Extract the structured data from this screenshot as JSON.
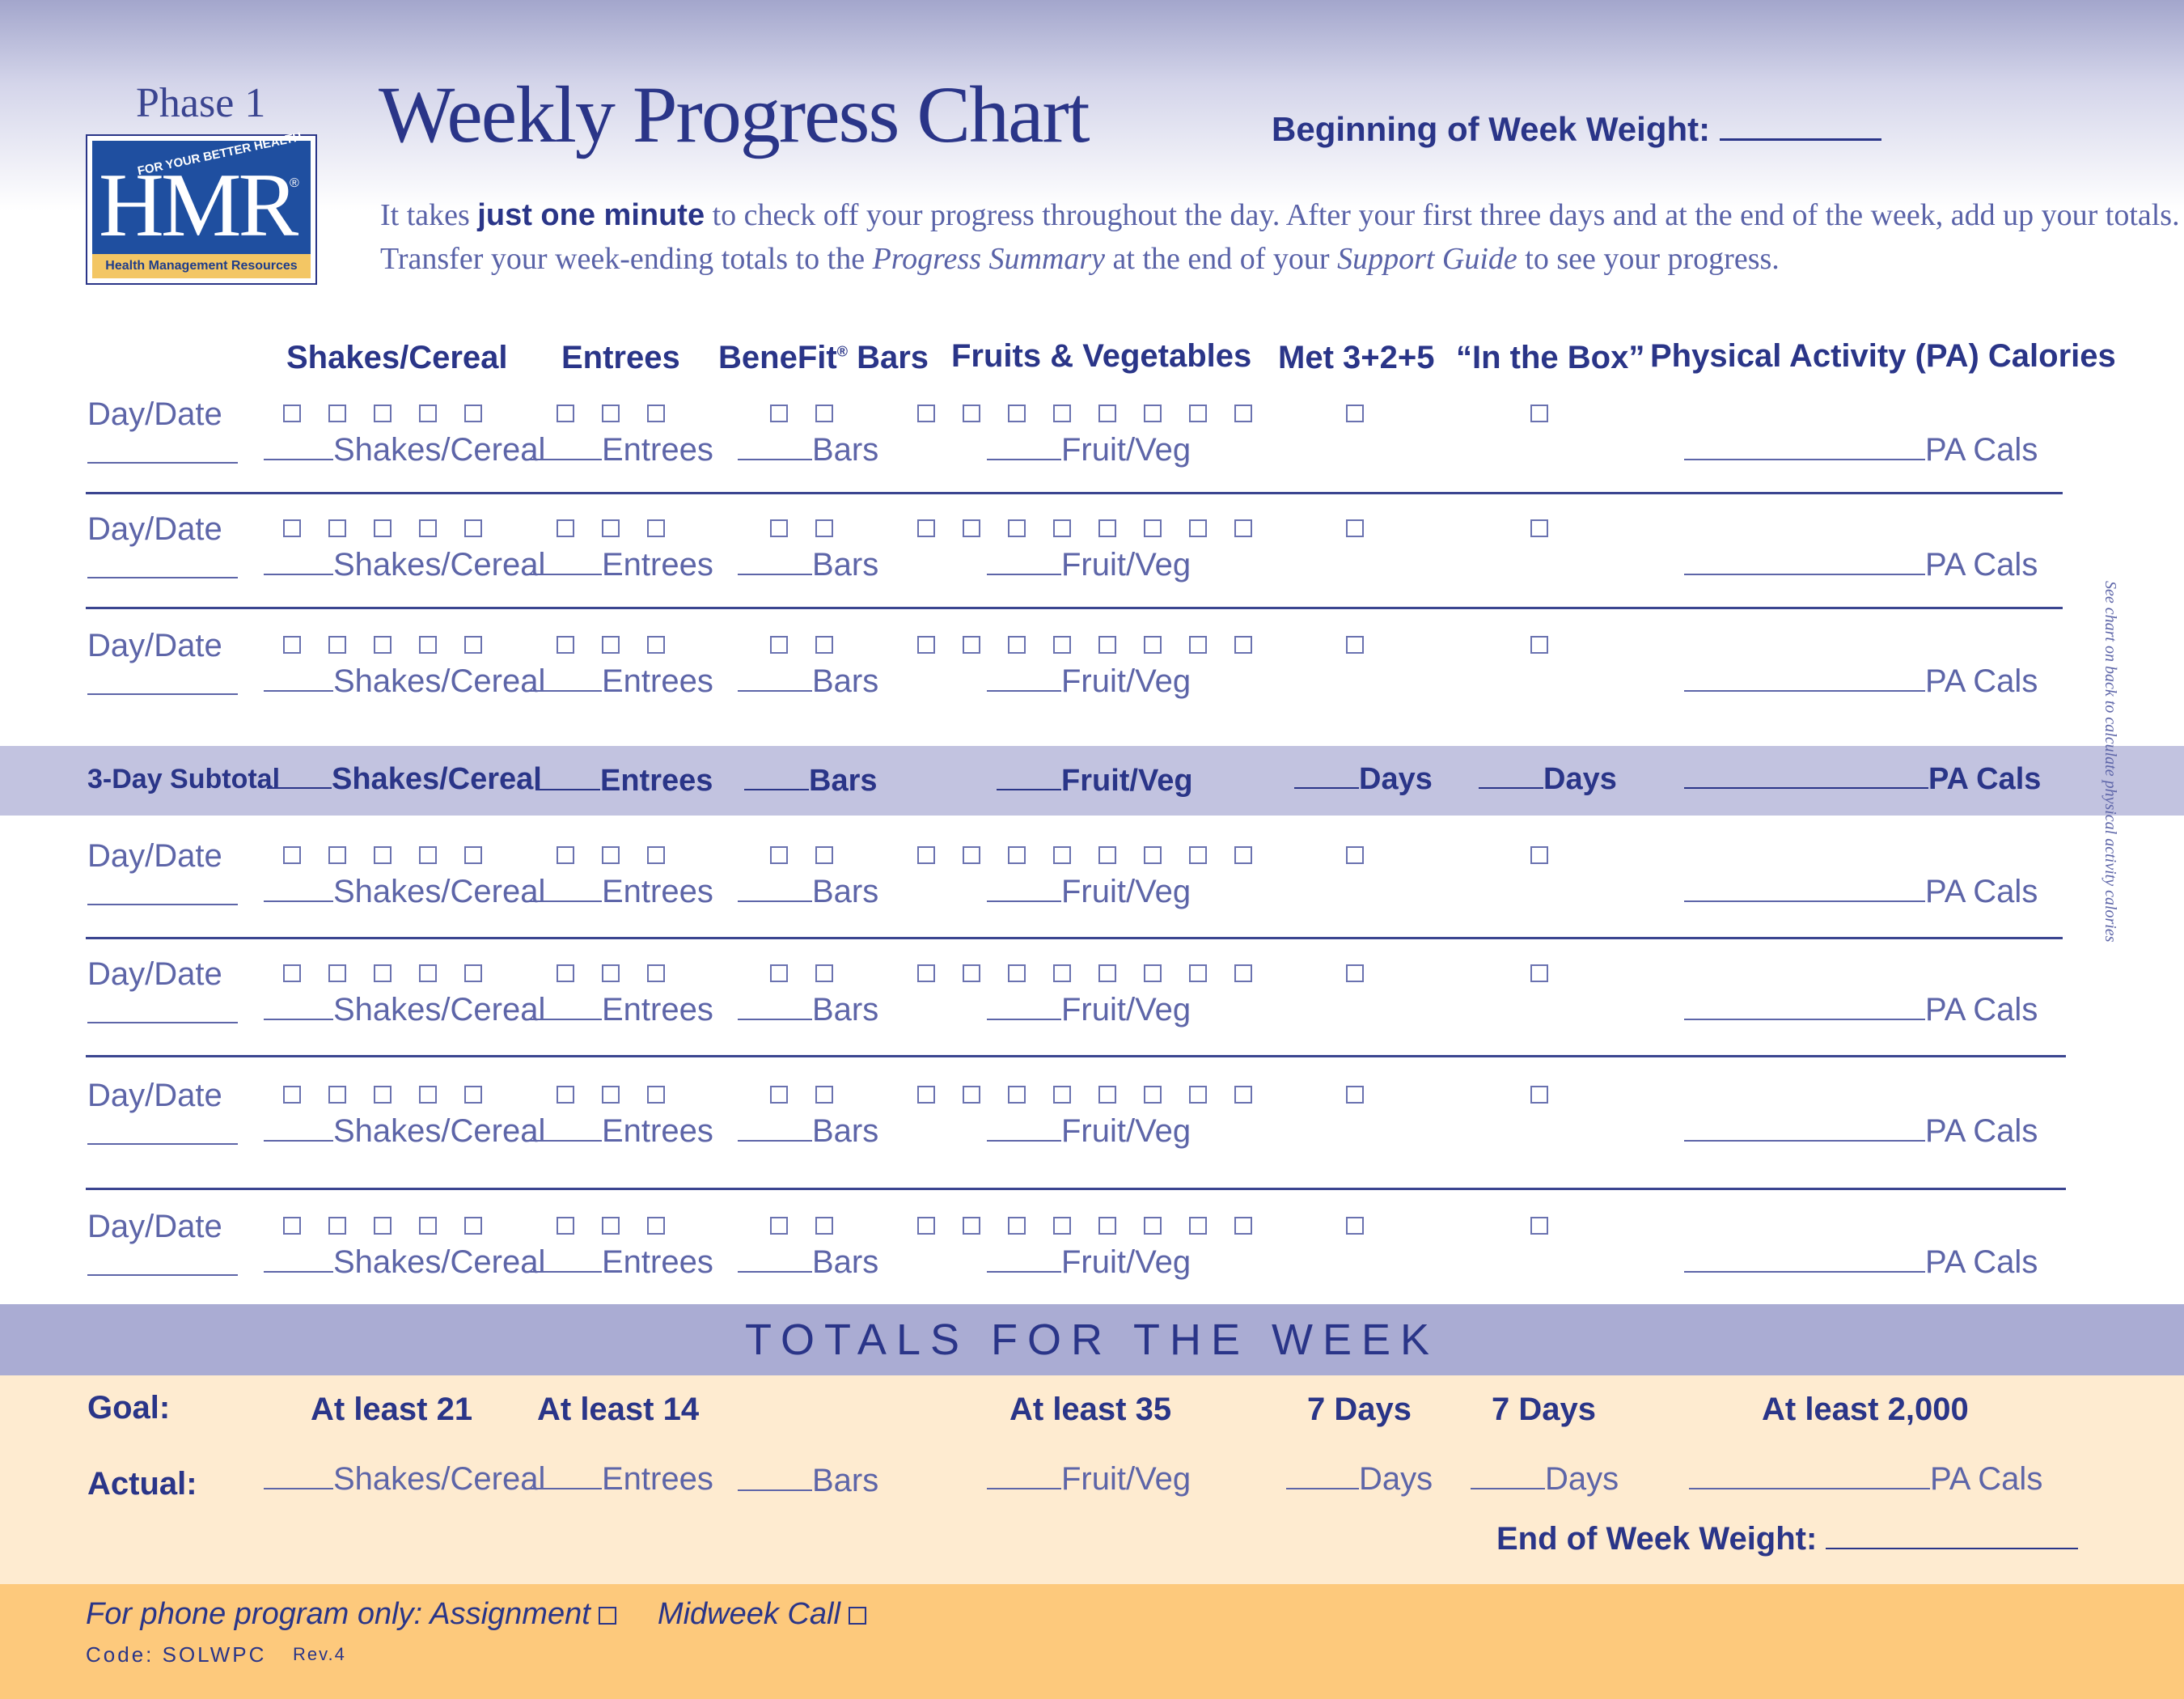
{
  "header": {
    "phase": "Phase 1",
    "title": "Weekly Progress Chart",
    "weight_label": "Beginning of Week Weight:",
    "intro_line1_a": "It takes ",
    "intro_line1_bold": "just one minute",
    "intro_line1_b": " to check off your progress throughout the day. After your first three days and at the end of the week, add up your totals.",
    "intro_line2_a": "Transfer your week-ending totals to the ",
    "intro_line2_italic1": "Progress Summary",
    "intro_line2_b": " at the end of your ",
    "intro_line2_italic2": "Support Guide",
    "intro_line2_c": " to see your progress."
  },
  "logo": {
    "tagline": "FOR YOUR BETTER HEALTH",
    "mark": "HMR",
    "registered": "®",
    "name": "Health Management Resources"
  },
  "columns": {
    "shakes": "Shakes/Cereal",
    "entrees": "Entrees",
    "bars_a": "BeneFit",
    "bars_reg": "®",
    "bars_b": " Bars",
    "fruits": "Fruits & Vegetables",
    "met": "Met 3+2+5",
    "box": "“In the Box”",
    "pa": "Physical Activity (PA) Calories"
  },
  "row_labels": {
    "day_date": "Day/Date",
    "shakes": "Shakes/Cereal",
    "entrees": "Entrees",
    "bars": "Bars",
    "fruit": "Fruit/Veg",
    "pa": "PA Cals",
    "days": "Days"
  },
  "subtotal": {
    "label": "3-Day Subtotal"
  },
  "side_note": "See chart on back to calculate physical activity calories",
  "totals": {
    "heading": "TOTALS FOR THE WEEK",
    "goal_label": "Goal:",
    "actual_label": "Actual:",
    "goals": [
      "At least 21",
      "At least 14",
      "At least 35",
      "7 Days",
      "7 Days",
      "At least 2,000"
    ],
    "end_weight": "End of Week Weight:"
  },
  "footer": {
    "phone_label": "For phone program only: Assignment",
    "midweek": "Midweek Call",
    "code": "Code: SOLWPC",
    "rev": "Rev.4"
  },
  "colors": {
    "navy": "#2a3588",
    "band_subtotal": "#c2c3e0",
    "band_totals": "#aaacd3",
    "goal_bg": "#feebd0",
    "footer_bg": "#fdc97c"
  }
}
